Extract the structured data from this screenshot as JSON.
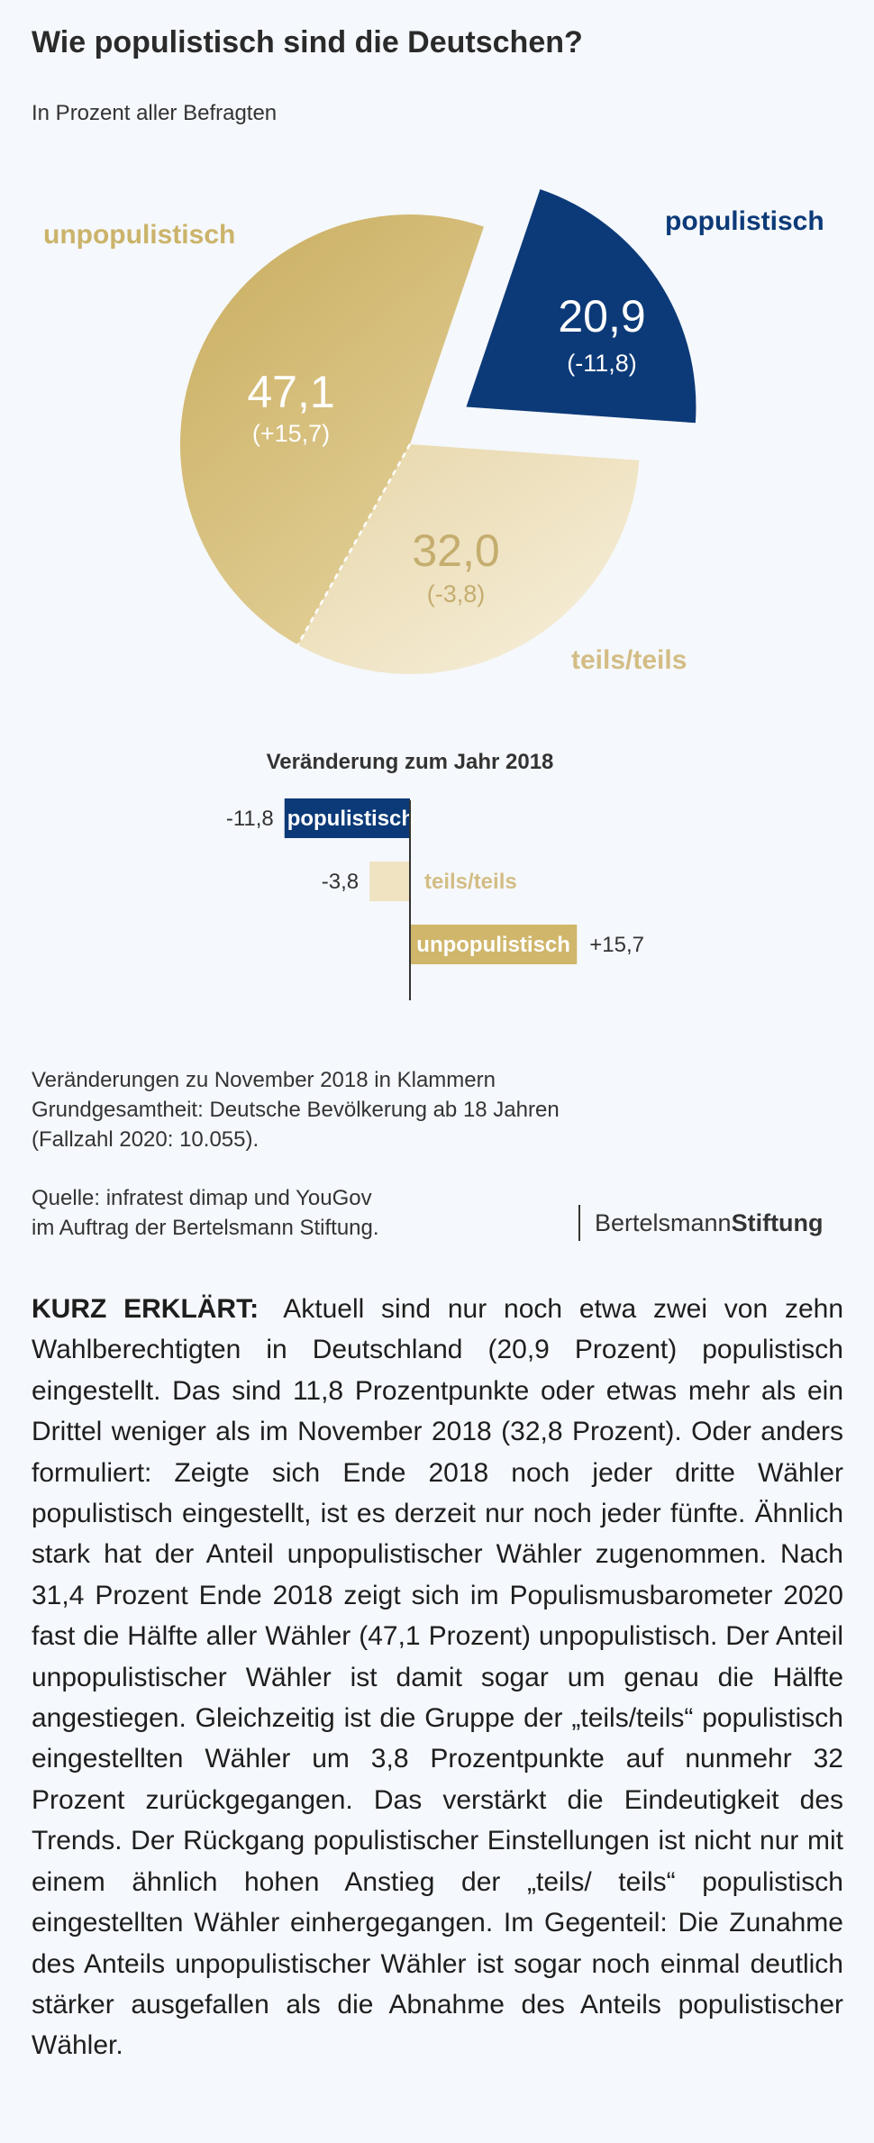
{
  "title": "Wie populistisch sind die Deutschen?",
  "subtitle": "In Prozent aller Befragten",
  "chart_data": [
    {
      "type": "pie",
      "slices": [
        {
          "name": "populistisch",
          "value": 20.9,
          "value_label": "20,9",
          "change_label": "(-11,8)",
          "color": "#0c3a78",
          "exploded": true
        },
        {
          "name": "teils/teils",
          "value": 32.0,
          "value_label": "32,0",
          "change_label": "(-3,8)",
          "color": "#efe3c2"
        },
        {
          "name": "unpopulistisch",
          "value": 47.1,
          "value_label": "47,1",
          "change_label": "(+15,7)",
          "color": "#d2b86b"
        }
      ],
      "colors": {
        "populistisch": "#0c3a78",
        "teils_label": "#d3bd85",
        "unpopulistisch": "#cbb36a",
        "teils_value": "#c4ad6e"
      }
    },
    {
      "type": "bar",
      "title": "Veränderung zum Jahr 2018",
      "categories": [
        "populistisch",
        "teils/teils",
        "unpopulistisch"
      ],
      "values": [
        -11.8,
        -3.8,
        15.7
      ],
      "value_labels": [
        "-11,8",
        "-3,8",
        "+15,7"
      ],
      "colors": [
        "#0c3a78",
        "#efe3c2",
        "#cfb66b"
      ]
    }
  ],
  "notes": [
    "Veränderungen zu November 2018 in Klammern",
    "Grundgesamtheit: Deutsche Bevölkerung ab 18 Jahren",
    "(Fallzahl 2020: 10.055)."
  ],
  "source": [
    "Quelle: infratest dimap und YouGov",
    "im Auftrag der Bertelsmann Stiftung."
  ],
  "brand": {
    "part1": "Bertelsmann",
    "part2": "Stiftung"
  },
  "body": {
    "lead": "KURZ ERKLÄRT:",
    "text": "Aktuell sind nur noch etwa zwei von zehn Wahlberechtigten in Deutschland (20,9 Prozent) populistisch eingestellt. Das sind 11,8 Prozentpunkte oder etwas mehr als ein Drittel weniger als im November 2018 (32,8 Prozent). Oder anders formuliert: Zeigte sich Ende 2018 noch jeder dritte Wähler populistisch eingestellt, ist es derzeit nur noch jeder fünfte. Ähnlich stark hat der Anteil unpopulistischer Wähler zugenommen. Nach 31,4 Prozent Ende 2018 zeigt sich im Populismusbarometer 2020 fast die Hälfte aller Wähler (47,1 Prozent) unpopulistisch. Der Anteil unpopulistischer Wähler ist damit sogar um genau die Hälfte angestiegen. Gleichzeitig ist die Gruppe der „teils/teils“ populistisch eingestellten Wähler um 3,8 Prozentpunkte auf nunmehr 32 Prozent zurückgegangen. Das verstärkt die Eindeutigkeit des Trends. Der Rückgang populistischer Einstellungen ist nicht nur mit einem ähnlich hohen Anstieg der „teils/ teils“ populistisch eingestellten Wähler einhergegangen. Im Gegenteil: Die Zunahme des Anteils unpopulistischer Wähler ist sogar noch einmal deutlich stärker ausgefallen als die Abnahme des Anteils populistischer Wähler."
  }
}
